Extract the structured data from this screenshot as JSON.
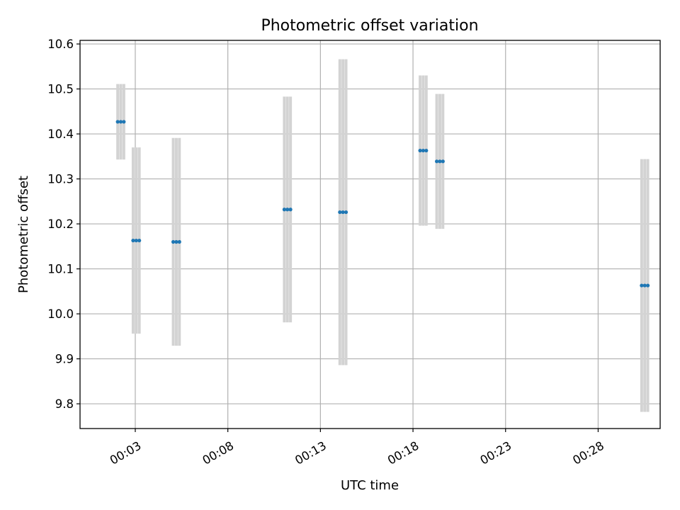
{
  "chart_data": {
    "type": "scatter",
    "title": "Photometric offset variation",
    "xlabel": "UTC time",
    "ylabel": "Photometric offset",
    "x_ticks": [
      "00:03",
      "00:08",
      "00:13",
      "00:18",
      "00:23",
      "00:28"
    ],
    "y_ticks": [
      "9.8",
      "9.9",
      "10.0",
      "10.1",
      "10.2",
      "10.3",
      "10.4",
      "10.5",
      "10.6"
    ],
    "xlim": [
      "00:00:01",
      "00:31:21"
    ],
    "ylim": [
      9.745,
      10.608
    ],
    "grid": true,
    "series": [
      {
        "points": [
          {
            "x": "00:02:03",
            "y": 10.427,
            "err": 0.084
          },
          {
            "x": "00:02:13",
            "y": 10.427,
            "err": 0.084
          },
          {
            "x": "00:02:23",
            "y": 10.427,
            "err": 0.084
          },
          {
            "x": "00:02:53",
            "y": 10.163,
            "err": 0.207
          },
          {
            "x": "00:03:03",
            "y": 10.163,
            "err": 0.207
          },
          {
            "x": "00:03:13",
            "y": 10.163,
            "err": 0.207
          },
          {
            "x": "00:05:03",
            "y": 10.16,
            "err": 0.231
          },
          {
            "x": "00:05:13",
            "y": 10.16,
            "err": 0.231
          },
          {
            "x": "00:05:23",
            "y": 10.16,
            "err": 0.231
          },
          {
            "x": "00:11:03",
            "y": 10.232,
            "err": 0.251
          },
          {
            "x": "00:11:13",
            "y": 10.232,
            "err": 0.251
          },
          {
            "x": "00:11:23",
            "y": 10.232,
            "err": 0.251
          },
          {
            "x": "00:14:03",
            "y": 10.226,
            "err": 0.34
          },
          {
            "x": "00:14:13",
            "y": 10.226,
            "err": 0.34
          },
          {
            "x": "00:14:23",
            "y": 10.226,
            "err": 0.34
          },
          {
            "x": "00:18:23",
            "y": 10.363,
            "err": 0.167
          },
          {
            "x": "00:18:33",
            "y": 10.363,
            "err": 0.167
          },
          {
            "x": "00:18:43",
            "y": 10.363,
            "err": 0.167
          },
          {
            "x": "00:19:17",
            "y": 10.339,
            "err": 0.15
          },
          {
            "x": "00:19:27",
            "y": 10.339,
            "err": 0.15
          },
          {
            "x": "00:19:37",
            "y": 10.339,
            "err": 0.15
          },
          {
            "x": "00:30:21",
            "y": 10.063,
            "err": 0.281
          },
          {
            "x": "00:30:31",
            "y": 10.063,
            "err": 0.281
          },
          {
            "x": "00:30:41",
            "y": 10.063,
            "err": 0.281
          }
        ],
        "color": "#1f77b4",
        "errorbar_color": "#d3d3d3"
      }
    ]
  }
}
